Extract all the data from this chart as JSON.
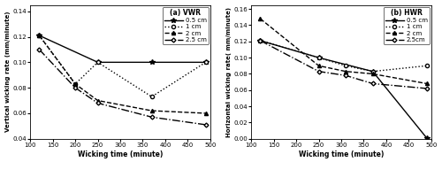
{
  "vwr": {
    "title": "(a) VWR",
    "xlabel": "Wicking time (minute)",
    "ylabel": "Vertical wicking rate (mm/minute)",
    "xlim": [
      100,
      500
    ],
    "ylim": [
      0.04,
      0.145
    ],
    "yticks": [
      0.04,
      0.06,
      0.08,
      0.1,
      0.12,
      0.14
    ],
    "xticks": [
      100,
      150,
      200,
      250,
      300,
      350,
      400,
      450,
      500
    ],
    "series": [
      {
        "label": "0.5 cm",
        "x": [
          120,
          250,
          370,
          490
        ],
        "y": [
          0.121,
          0.1,
          0.1,
          0.1
        ],
        "linestyle": "-",
        "marker": "*",
        "color": "black",
        "linewidth": 1.0,
        "markersize": 4
      },
      {
        "label": "1 cm",
        "x": [
          120,
          200,
          250,
          370,
          490
        ],
        "y": [
          0.121,
          0.083,
          0.1,
          0.073,
          0.1
        ],
        "linestyle": ":",
        "marker": "o",
        "color": "black",
        "linewidth": 1.0,
        "markersize": 3
      },
      {
        "label": "2 cm",
        "x": [
          120,
          200,
          250,
          370,
          490
        ],
        "y": [
          0.121,
          0.083,
          0.07,
          0.062,
          0.06
        ],
        "linestyle": "--",
        "marker": "^",
        "color": "black",
        "linewidth": 1.0,
        "markersize": 3
      },
      {
        "label": "2.5 cm",
        "x": [
          120,
          200,
          250,
          370,
          490
        ],
        "y": [
          0.11,
          0.08,
          0.068,
          0.057,
          0.051
        ],
        "linestyle": "-.",
        "marker": "D",
        "color": "black",
        "linewidth": 1.0,
        "markersize": 2.5
      }
    ]
  },
  "hwr": {
    "title": "(b) HWR",
    "xlabel": "Wicking time (minute)",
    "ylabel": "Horizontal wicking rate( mm/minute)",
    "xlim": [
      100,
      500
    ],
    "ylim": [
      0.0,
      0.165
    ],
    "yticks": [
      0.0,
      0.02,
      0.04,
      0.06,
      0.08,
      0.1,
      0.12,
      0.14,
      0.16
    ],
    "xticks": [
      100,
      150,
      200,
      250,
      300,
      350,
      400,
      450,
      500
    ],
    "series": [
      {
        "label": "0.5 cm",
        "x": [
          120,
          250,
          370,
          490
        ],
        "y": [
          0.121,
          0.1,
          0.083,
          0.001
        ],
        "linestyle": "-",
        "marker": "*",
        "color": "black",
        "linewidth": 1.0,
        "markersize": 4
      },
      {
        "label": "1 cm",
        "x": [
          120,
          250,
          310,
          370,
          490
        ],
        "y": [
          0.121,
          0.1,
          0.09,
          0.083,
          0.09
        ],
        "linestyle": ":",
        "marker": "o",
        "color": "black",
        "linewidth": 1.0,
        "markersize": 3
      },
      {
        "label": "2 cm",
        "x": [
          120,
          250,
          310,
          370,
          490
        ],
        "y": [
          0.148,
          0.09,
          0.083,
          0.08,
          0.068
        ],
        "linestyle": "--",
        "marker": "^",
        "color": "black",
        "linewidth": 1.0,
        "markersize": 3
      },
      {
        "label": "2.5cm",
        "x": [
          120,
          250,
          310,
          370,
          490
        ],
        "y": [
          0.121,
          0.083,
          0.078,
          0.068,
          0.062
        ],
        "linestyle": "-.",
        "marker": "D",
        "color": "black",
        "linewidth": 1.0,
        "markersize": 2.5
      }
    ]
  },
  "caption_a": "(a)",
  "caption_b": "(b)",
  "bg_color": "#ffffff"
}
